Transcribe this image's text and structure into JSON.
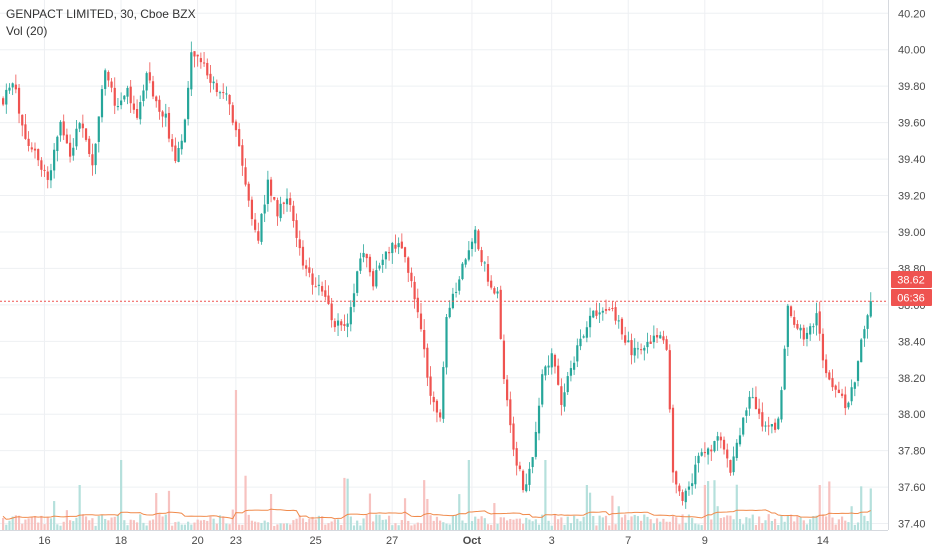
{
  "header": {
    "symbol_line": "GENPACT LIMITED, 30, Cboe BZX",
    "volume_line": "Vol (20)"
  },
  "price_badge": {
    "value": "38.62",
    "color": "#ef5350"
  },
  "countdown_badge": {
    "value": "06:36",
    "color": "#ef5350"
  },
  "colors": {
    "up": "#26a69a",
    "down": "#ef5350",
    "volume_up": "#b5e0dc",
    "volume_down": "#f7c2c0",
    "volume_ma": "#f08a4b",
    "grid": "#eef0f3",
    "axis_text": "#4a4a4a"
  },
  "chart_data": {
    "type": "candlestick",
    "interval": "30",
    "last_price": 38.62,
    "y_axis": {
      "ticks": [
        "40.20",
        "40.00",
        "39.80",
        "39.60",
        "39.40",
        "39.20",
        "39.00",
        "38.80",
        "38.60",
        "38.40",
        "38.20",
        "38.00",
        "37.80",
        "37.60",
        "37.40"
      ],
      "range": [
        37.2,
        40.24
      ]
    },
    "x_axis": {
      "ticks": [
        "16",
        "18",
        "20",
        "23",
        "25",
        "27",
        "Oct",
        "3",
        "7",
        "9",
        "14"
      ],
      "bold_ticks": [
        "Oct"
      ]
    },
    "grid": true,
    "price_waypoints": [
      [
        0,
        39.7
      ],
      [
        3,
        39.85
      ],
      [
        6,
        39.55
      ],
      [
        10,
        39.45
      ],
      [
        14,
        39.28
      ],
      [
        18,
        39.6
      ],
      [
        21,
        39.4
      ],
      [
        24,
        39.6
      ],
      [
        28,
        39.35
      ],
      [
        32,
        39.9
      ],
      [
        35,
        39.7
      ],
      [
        39,
        39.78
      ],
      [
        42,
        39.6
      ],
      [
        45,
        39.9
      ],
      [
        48,
        39.7
      ],
      [
        51,
        39.62
      ],
      [
        54,
        39.4
      ],
      [
        57,
        39.6
      ],
      [
        59,
        40.0
      ],
      [
        62,
        39.95
      ],
      [
        66,
        39.8
      ],
      [
        70,
        39.75
      ],
      [
        74,
        39.5
      ],
      [
        77,
        39.15
      ],
      [
        80,
        38.95
      ],
      [
        83,
        39.3
      ],
      [
        86,
        39.1
      ],
      [
        89,
        39.2
      ],
      [
        92,
        38.95
      ],
      [
        95,
        38.8
      ],
      [
        98,
        38.7
      ],
      [
        101,
        38.65
      ],
      [
        104,
        38.5
      ],
      [
        107,
        38.45
      ],
      [
        110,
        38.68
      ],
      [
        113,
        38.9
      ],
      [
        116,
        38.72
      ],
      [
        119,
        38.85
      ],
      [
        122,
        38.95
      ],
      [
        125,
        38.9
      ],
      [
        128,
        38.72
      ],
      [
        131,
        38.5
      ],
      [
        134,
        38.1
      ],
      [
        137,
        38.0
      ],
      [
        139,
        38.5
      ],
      [
        142,
        38.7
      ],
      [
        145,
        38.85
      ],
      [
        148,
        39.0
      ],
      [
        151,
        38.8
      ],
      [
        153,
        38.7
      ],
      [
        155,
        38.65
      ],
      [
        157,
        38.2
      ],
      [
        160,
        37.8
      ],
      [
        163,
        37.6
      ],
      [
        166,
        37.75
      ],
      [
        169,
        38.2
      ],
      [
        172,
        38.35
      ],
      [
        175,
        38.05
      ],
      [
        178,
        38.25
      ],
      [
        181,
        38.4
      ],
      [
        185,
        38.55
      ],
      [
        188,
        38.6
      ],
      [
        191,
        38.58
      ],
      [
        194,
        38.45
      ],
      [
        197,
        38.35
      ],
      [
        200,
        38.38
      ],
      [
        203,
        38.4
      ],
      [
        206,
        38.42
      ],
      [
        208,
        38.35
      ],
      [
        210,
        37.7
      ],
      [
        213,
        37.5
      ],
      [
        216,
        37.65
      ],
      [
        219,
        37.8
      ],
      [
        222,
        37.8
      ],
      [
        225,
        37.88
      ],
      [
        228,
        37.7
      ],
      [
        231,
        37.9
      ],
      [
        234,
        38.1
      ],
      [
        237,
        37.98
      ],
      [
        240,
        37.92
      ],
      [
        243,
        37.95
      ],
      [
        246,
        38.6
      ],
      [
        249,
        38.45
      ],
      [
        252,
        38.42
      ],
      [
        255,
        38.52
      ],
      [
        258,
        38.2
      ],
      [
        261,
        38.1
      ],
      [
        264,
        38.05
      ],
      [
        267,
        38.15
      ],
      [
        270,
        38.5
      ],
      [
        272,
        38.62
      ]
    ],
    "volume_ma_level": "low, roughly flat"
  }
}
